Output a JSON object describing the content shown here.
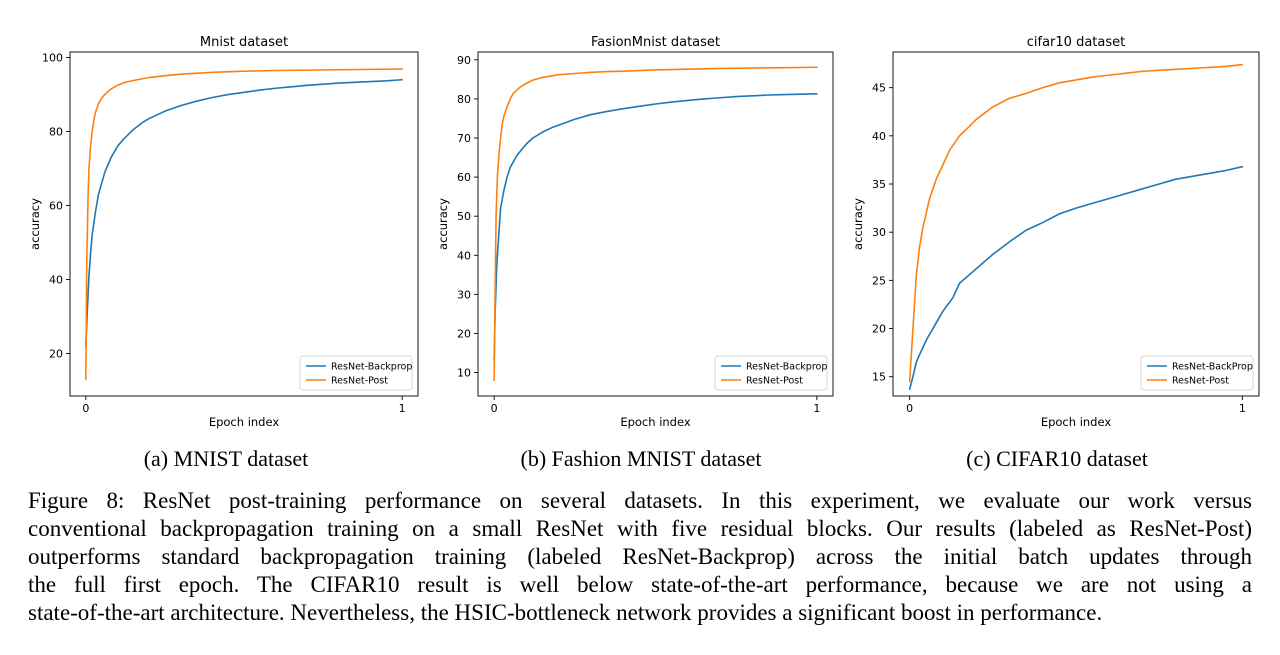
{
  "chart_data": [
    {
      "type": "line",
      "title": "Mnist dataset",
      "xlabel": "Epoch index",
      "ylabel": "accuracy",
      "xlim": [
        -0.05,
        1.05
      ],
      "ylim": [
        8.5,
        101.5
      ],
      "xticks": [
        0,
        1
      ],
      "xtick_labels": [
        "0",
        "1"
      ],
      "yticks": [
        20,
        40,
        60,
        80,
        100
      ],
      "ytick_labels": [
        "20",
        "40",
        "60",
        "80",
        "100"
      ],
      "grid": false,
      "legend_position": "lower right",
      "series": [
        {
          "name": "ResNet-Backprop",
          "color": "#1f77b4",
          "x": [
            0,
            0.005,
            0.01,
            0.015,
            0.02,
            0.03,
            0.04,
            0.05,
            0.06,
            0.07,
            0.08,
            0.1,
            0.12,
            0.15,
            0.18,
            0.2,
            0.25,
            0.3,
            0.35,
            0.4,
            0.45,
            0.5,
            0.55,
            0.6,
            0.65,
            0.7,
            0.75,
            0.8,
            0.85,
            0.9,
            0.95,
            1.0
          ],
          "y": [
            22,
            32,
            41,
            47,
            52,
            58,
            63,
            66,
            69,
            71,
            73,
            76,
            78,
            80.5,
            82.5,
            83.5,
            85.5,
            87,
            88.2,
            89.2,
            90,
            90.6,
            91.2,
            91.7,
            92.1,
            92.5,
            92.8,
            93.1,
            93.3,
            93.5,
            93.7,
            94
          ]
        },
        {
          "name": "ResNet-Post",
          "color": "#ff7f0e",
          "x": [
            0,
            0.003,
            0.007,
            0.01,
            0.015,
            0.02,
            0.025,
            0.03,
            0.04,
            0.05,
            0.06,
            0.07,
            0.08,
            0.1,
            0.12,
            0.15,
            0.2,
            0.25,
            0.3,
            0.4,
            0.5,
            0.6,
            0.7,
            0.8,
            0.9,
            1.0
          ],
          "y": [
            13,
            45,
            62,
            70,
            76,
            80,
            83,
            85,
            87.5,
            89,
            90,
            90.8,
            91.5,
            92.5,
            93.2,
            93.8,
            94.6,
            95.1,
            95.5,
            96,
            96.3,
            96.5,
            96.6,
            96.7,
            96.8,
            96.9
          ]
        }
      ]
    },
    {
      "type": "line",
      "title": "FasionMnist dataset",
      "xlabel": "Epoch index",
      "ylabel": "accuracy",
      "xlim": [
        -0.05,
        1.05
      ],
      "ylim": [
        4,
        92
      ],
      "xticks": [
        0,
        1
      ],
      "xtick_labels": [
        "0",
        "1"
      ],
      "yticks": [
        10,
        20,
        30,
        40,
        50,
        60,
        70,
        80,
        90
      ],
      "ytick_labels": [
        "10",
        "20",
        "30",
        "40",
        "50",
        "60",
        "70",
        "80",
        "90"
      ],
      "grid": false,
      "legend_position": "lower right",
      "series": [
        {
          "name": "ResNet-Backprop",
          "color": "#1f77b4",
          "x": [
            0,
            0.003,
            0.007,
            0.01,
            0.015,
            0.02,
            0.03,
            0.04,
            0.05,
            0.06,
            0.07,
            0.08,
            0.1,
            0.12,
            0.15,
            0.18,
            0.2,
            0.25,
            0.3,
            0.35,
            0.4,
            0.45,
            0.5,
            0.55,
            0.6,
            0.65,
            0.7,
            0.75,
            0.8,
            0.85,
            0.9,
            0.95,
            1.0
          ],
          "y": [
            13,
            25,
            35,
            40,
            46,
            52,
            56.5,
            60,
            62.5,
            64,
            65.5,
            66.5,
            68.5,
            70,
            71.5,
            72.7,
            73.3,
            74.8,
            76,
            76.8,
            77.5,
            78.1,
            78.7,
            79.2,
            79.6,
            80,
            80.3,
            80.6,
            80.8,
            81,
            81.1,
            81.2,
            81.3
          ]
        },
        {
          "name": "ResNet-Post",
          "color": "#ff7f0e",
          "x": [
            0,
            0.003,
            0.006,
            0.01,
            0.015,
            0.02,
            0.025,
            0.03,
            0.04,
            0.05,
            0.06,
            0.08,
            0.1,
            0.12,
            0.15,
            0.2,
            0.25,
            0.3,
            0.35,
            0.4,
            0.5,
            0.6,
            0.7,
            0.8,
            0.9,
            1.0
          ],
          "y": [
            8,
            30,
            50,
            60,
            66,
            70,
            73.5,
            75.5,
            78,
            80,
            81.5,
            83,
            84,
            84.8,
            85.5,
            86.2,
            86.5,
            86.8,
            87,
            87.1,
            87.4,
            87.6,
            87.8,
            87.9,
            88,
            88.1
          ]
        }
      ]
    },
    {
      "type": "line",
      "title": "cifar10 dataset",
      "xlabel": "Epoch index",
      "ylabel": "accuracy",
      "xlim": [
        -0.05,
        1.05
      ],
      "ylim": [
        13,
        48.7
      ],
      "xticks": [
        0,
        1
      ],
      "xtick_labels": [
        "0",
        "1"
      ],
      "yticks": [
        15,
        20,
        25,
        30,
        35,
        40,
        45
      ],
      "ytick_labels": [
        "15",
        "20",
        "25",
        "30",
        "35",
        "40",
        "45"
      ],
      "grid": false,
      "legend_position": "lower right",
      "series": [
        {
          "name": "ResNet-BackProp",
          "color": "#1f77b4",
          "x": [
            0,
            0.01,
            0.02,
            0.03,
            0.05,
            0.07,
            0.1,
            0.13,
            0.15,
            0.2,
            0.25,
            0.3,
            0.35,
            0.4,
            0.45,
            0.5,
            0.55,
            0.6,
            0.65,
            0.7,
            0.75,
            0.8,
            0.85,
            0.9,
            0.95,
            1.0
          ],
          "y": [
            13.7,
            15,
            16.5,
            17.3,
            18.8,
            20,
            21.8,
            23.2,
            24.7,
            26.2,
            27.7,
            29,
            30.2,
            31,
            31.9,
            32.5,
            33,
            33.5,
            34,
            34.5,
            35,
            35.5,
            35.8,
            36.1,
            36.4,
            36.8
          ]
        },
        {
          "name": "ResNet-Post",
          "color": "#ff7f0e",
          "x": [
            0,
            0.01,
            0.02,
            0.03,
            0.04,
            0.05,
            0.06,
            0.08,
            0.1,
            0.12,
            0.15,
            0.18,
            0.2,
            0.25,
            0.3,
            0.35,
            0.4,
            0.45,
            0.5,
            0.55,
            0.6,
            0.65,
            0.7,
            0.75,
            0.8,
            0.85,
            0.9,
            0.95,
            1.0
          ],
          "y": [
            14.5,
            20,
            25.5,
            28.5,
            30.5,
            32,
            33.5,
            35.5,
            37,
            38.5,
            40,
            41,
            41.7,
            43,
            43.9,
            44.4,
            45,
            45.5,
            45.8,
            46.1,
            46.3,
            46.5,
            46.7,
            46.8,
            46.9,
            47,
            47.1,
            47.2,
            47.4
          ]
        }
      ]
    }
  ],
  "subcaptions": [
    "(a) MNIST dataset",
    "(b) Fashion MNIST dataset",
    "(c) CIFAR10 dataset"
  ],
  "figure_caption": [
    "Figure 8: ResNet post-training performance on several datasets. In this experiment, we evaluate our work versus",
    "conventional backpropagation training on a small ResNet with five residual blocks. Our results (labeled as ResNet-Post)",
    "outperforms standard backpropagation training (labeled ResNet-Backprop) across the initial batch updates through",
    "the full first epoch. The CIFAR10 result is well below state-of-the-art performance, because we are not using a",
    "state-of-the-art architecture. Nevertheless, the HSIC-bottleneck network provides a significant boost in performance."
  ]
}
